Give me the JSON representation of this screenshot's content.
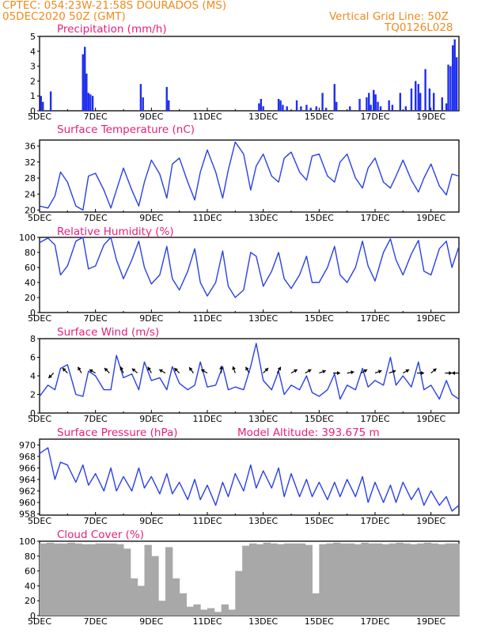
{
  "header": {
    "line1_left": "CPTEC:  054:23W-21:58S  DOURADOS (MS)",
    "line2_left": "05DEC2020 50Z (GMT)",
    "line1_right": "Vertical Grid Line: 50Z",
    "line2_right": "TQ0126L028"
  },
  "x_tick_labels": [
    "5DEC",
    "7DEC",
    "9DEC",
    "11DEC",
    "13DEC",
    "15DEC",
    "17DEC",
    "19DEC"
  ],
  "colors": {
    "title": "#e8207a",
    "header": "#ef8a1e",
    "series": "#2a40e8",
    "bars": "#1f2ff0",
    "cloud": "#a8a8a8"
  },
  "chart_data": [
    {
      "type": "bar",
      "title": "Precipitation (mm/h)",
      "ylim": [
        0,
        5
      ],
      "y_ticks": [
        0,
        1,
        2,
        3,
        4,
        5
      ],
      "x_day_range": [
        5,
        20
      ],
      "x": [
        5.05,
        5.12,
        5.4,
        6.55,
        6.62,
        6.68,
        6.75,
        6.82,
        6.9,
        8.62,
        8.7,
        9.55,
        9.62,
        12.85,
        12.92,
        13.0,
        13.55,
        13.62,
        13.7,
        13.85,
        14.2,
        14.35,
        14.55,
        14.7,
        14.9,
        15.12,
        15.25,
        15.55,
        15.62,
        16.1,
        16.45,
        16.7,
        16.78,
        16.85,
        16.95,
        17.02,
        17.1,
        17.2,
        17.5,
        17.62,
        17.9,
        18.1,
        18.3,
        18.45,
        18.55,
        18.62,
        18.8,
        18.95,
        19.1,
        19.4,
        19.55,
        19.62,
        19.7,
        19.78,
        19.85,
        19.92
      ],
      "values": [
        1.0,
        0.6,
        1.3,
        3.8,
        4.3,
        2.5,
        1.2,
        1.1,
        1.0,
        1.8,
        0.9,
        1.6,
        0.7,
        0.5,
        0.8,
        0.3,
        0.8,
        0.7,
        0.4,
        0.3,
        0.7,
        0.3,
        0.4,
        0.2,
        0.3,
        1.2,
        0.2,
        1.8,
        0.6,
        0.3,
        0.8,
        0.9,
        1.2,
        0.4,
        1.4,
        1.1,
        0.6,
        0.3,
        0.7,
        0.4,
        1.2,
        0.3,
        1.5,
        2.0,
        1.8,
        1.2,
        2.8,
        1.5,
        1.2,
        0.9,
        0.5,
        3.1,
        3.0,
        4.4,
        4.8,
        3.6
      ]
    },
    {
      "type": "line",
      "title": "Surface Temperature (nC)",
      "ylim": [
        19.5,
        37.5
      ],
      "y_ticks": [
        20,
        24,
        28,
        32,
        36
      ],
      "x_day_range": [
        5,
        20
      ],
      "x": [
        5.0,
        5.3,
        5.55,
        5.75,
        6.0,
        6.3,
        6.55,
        6.75,
        7.0,
        7.3,
        7.55,
        7.75,
        8.0,
        8.3,
        8.55,
        8.75,
        9.0,
        9.3,
        9.55,
        9.75,
        10.0,
        10.3,
        10.55,
        10.75,
        11.0,
        11.3,
        11.55,
        11.75,
        12.0,
        12.3,
        12.55,
        12.75,
        13.0,
        13.3,
        13.55,
        13.75,
        14.0,
        14.3,
        14.55,
        14.75,
        15.0,
        15.3,
        15.55,
        15.75,
        16.0,
        16.3,
        16.55,
        16.75,
        17.0,
        17.3,
        17.55,
        17.75,
        18.0,
        18.3,
        18.55,
        18.75,
        19.0,
        19.3,
        19.55,
        19.75,
        20.0
      ],
      "values": [
        21.0,
        20.5,
        23.5,
        29.5,
        27.0,
        21.0,
        20.0,
        28.5,
        29.2,
        25.0,
        20.5,
        25.0,
        30.5,
        25.0,
        21.0,
        27.0,
        32.5,
        29.0,
        23.0,
        31.5,
        33.0,
        27.0,
        22.5,
        29.5,
        35.0,
        29.5,
        23.0,
        30.0,
        37.0,
        34.0,
        25.0,
        31.0,
        34.0,
        28.5,
        27.0,
        33.0,
        34.5,
        29.5,
        27.5,
        33.5,
        34.0,
        28.5,
        27.0,
        32.0,
        34.0,
        28.0,
        25.5,
        30.5,
        33.0,
        27.0,
        25.5,
        28.5,
        32.5,
        27.5,
        24.5,
        28.0,
        31.5,
        26.0,
        23.8,
        29.0,
        28.5
      ]
    },
    {
      "type": "line",
      "title": "Relative Humidity (%)",
      "ylim": [
        0,
        100
      ],
      "y_ticks": [
        0,
        20,
        40,
        60,
        80,
        100
      ],
      "x_day_range": [
        5,
        20
      ],
      "x": [
        5.0,
        5.3,
        5.55,
        5.75,
        6.0,
        6.3,
        6.55,
        6.75,
        7.0,
        7.3,
        7.55,
        7.75,
        8.0,
        8.3,
        8.55,
        8.75,
        9.0,
        9.3,
        9.55,
        9.75,
        10.0,
        10.3,
        10.55,
        10.75,
        11.0,
        11.3,
        11.55,
        11.75,
        12.0,
        12.3,
        12.55,
        12.75,
        13.0,
        13.3,
        13.55,
        13.75,
        14.0,
        14.3,
        14.55,
        14.75,
        15.0,
        15.3,
        15.55,
        15.75,
        16.0,
        16.3,
        16.55,
        16.75,
        17.0,
        17.3,
        17.55,
        17.75,
        18.0,
        18.3,
        18.55,
        18.75,
        19.0,
        19.3,
        19.55,
        19.75,
        20.0
      ],
      "values": [
        93,
        99,
        90,
        50,
        62,
        95,
        100,
        58,
        62,
        90,
        100,
        70,
        45,
        70,
        95,
        60,
        38,
        50,
        88,
        45,
        30,
        55,
        85,
        40,
        22,
        40,
        82,
        35,
        20,
        30,
        80,
        75,
        35,
        55,
        80,
        45,
        32,
        50,
        75,
        40,
        40,
        60,
        88,
        50,
        40,
        60,
        95,
        62,
        42,
        80,
        98,
        70,
        50,
        78,
        96,
        55,
        50,
        85,
        95,
        60,
        88
      ]
    },
    {
      "type": "line",
      "title": "Surface Wind (m/s)",
      "ylim": [
        0,
        8
      ],
      "y_ticks": [
        0,
        2,
        4,
        6,
        8
      ],
      "x_day_range": [
        5,
        20
      ],
      "x": [
        5.0,
        5.3,
        5.55,
        5.75,
        6.0,
        6.3,
        6.55,
        6.75,
        7.0,
        7.3,
        7.55,
        7.75,
        8.0,
        8.3,
        8.55,
        8.75,
        9.0,
        9.3,
        9.55,
        9.75,
        10.0,
        10.3,
        10.55,
        10.75,
        11.0,
        11.3,
        11.55,
        11.75,
        12.0,
        12.3,
        12.55,
        12.75,
        13.0,
        13.3,
        13.55,
        13.75,
        14.0,
        14.3,
        14.55,
        14.75,
        15.0,
        15.3,
        15.55,
        15.75,
        16.0,
        16.3,
        16.55,
        16.75,
        17.0,
        17.3,
        17.55,
        17.75,
        18.0,
        18.3,
        18.55,
        18.75,
        19.0,
        19.3,
        19.55,
        19.75,
        20.0
      ],
      "values": [
        1.8,
        3.0,
        2.5,
        4.8,
        5.2,
        2.0,
        1.8,
        4.5,
        4.0,
        2.5,
        2.5,
        6.2,
        3.8,
        4.2,
        2.5,
        5.5,
        3.5,
        3.8,
        2.5,
        5.0,
        3.2,
        2.5,
        3.0,
        5.5,
        2.8,
        3.0,
        5.0,
        2.5,
        2.8,
        2.5,
        5.0,
        7.5,
        3.5,
        2.5,
        4.5,
        2.0,
        3.0,
        2.5,
        4.0,
        2.2,
        1.8,
        2.5,
        4.2,
        1.5,
        3.0,
        2.5,
        4.8,
        2.8,
        3.5,
        3.0,
        6.0,
        3.0,
        4.0,
        2.8,
        5.5,
        2.5,
        3.0,
        1.5,
        3.5,
        2.0,
        1.5
      ],
      "arrows": {
        "x": [
          5.5,
          6.0,
          6.5,
          7.0,
          7.5,
          8.0,
          8.5,
          9.0,
          9.5,
          10.0,
          10.5,
          11.0,
          11.5,
          12.0,
          12.5,
          13.0,
          13.5,
          14.0,
          14.5,
          15.0,
          15.5,
          16.0,
          16.5,
          17.0,
          17.5,
          18.0,
          18.5,
          19.0,
          19.5,
          20.0
        ],
        "angle_deg": [
          225,
          135,
          120,
          150,
          135,
          115,
          140,
          120,
          150,
          135,
          125,
          150,
          90,
          110,
          120,
          45,
          60,
          30,
          30,
          20,
          0,
          10,
          30,
          20,
          20,
          30,
          0,
          40,
          0,
          180
        ]
      }
    },
    {
      "type": "line",
      "title": "Surface Pressure (hPa)",
      "annotation": "Model Altitude: 393.675 m",
      "ylim": [
        957.8,
        971
      ],
      "y_ticks": [
        958,
        960,
        962,
        964,
        966,
        968,
        970
      ],
      "x_day_range": [
        5,
        20
      ],
      "x": [
        5.0,
        5.3,
        5.55,
        5.75,
        6.0,
        6.3,
        6.55,
        6.75,
        7.0,
        7.3,
        7.55,
        7.75,
        8.0,
        8.3,
        8.55,
        8.75,
        9.0,
        9.3,
        9.55,
        9.75,
        10.0,
        10.3,
        10.55,
        10.75,
        11.0,
        11.3,
        11.55,
        11.75,
        12.0,
        12.3,
        12.55,
        12.75,
        13.0,
        13.3,
        13.55,
        13.75,
        14.0,
        14.3,
        14.55,
        14.75,
        15.0,
        15.3,
        15.55,
        15.75,
        16.0,
        16.3,
        16.55,
        16.75,
        17.0,
        17.3,
        17.55,
        17.75,
        18.0,
        18.3,
        18.55,
        18.75,
        19.0,
        19.3,
        19.55,
        19.75,
        20.0
      ],
      "values": [
        968.5,
        969.5,
        964.0,
        967.0,
        966.5,
        963.5,
        966.5,
        963.0,
        965.0,
        962.0,
        966.0,
        962.0,
        964.5,
        962.0,
        966.0,
        962.5,
        964.5,
        961.5,
        965.0,
        961.5,
        963.5,
        960.5,
        964.0,
        960.5,
        963.0,
        959.5,
        963.5,
        961.0,
        965.0,
        962.0,
        966.5,
        962.5,
        965.5,
        962.5,
        966.0,
        961.0,
        965.0,
        961.0,
        964.0,
        961.0,
        963.5,
        960.5,
        963.5,
        961.0,
        964.0,
        961.0,
        964.5,
        960.0,
        963.5,
        960.0,
        963.0,
        960.0,
        963.5,
        960.5,
        962.5,
        959.5,
        962.0,
        959.5,
        961.0,
        958.5,
        959.5
      ]
    },
    {
      "type": "bar",
      "title": "Cloud Cover (%)",
      "ylim": [
        0,
        100
      ],
      "y_ticks": [
        0,
        20,
        40,
        60,
        80,
        100
      ],
      "x_day_range": [
        5,
        20
      ],
      "x": [
        5.0,
        5.25,
        5.5,
        5.75,
        6.0,
        6.25,
        6.5,
        6.75,
        7.0,
        7.25,
        7.5,
        7.75,
        8.0,
        8.25,
        8.5,
        8.75,
        9.0,
        9.25,
        9.5,
        9.75,
        10.0,
        10.25,
        10.5,
        10.75,
        11.0,
        11.25,
        11.5,
        11.75,
        12.0,
        12.25,
        12.5,
        12.75,
        13.0,
        13.25,
        13.5,
        13.75,
        14.0,
        14.25,
        14.5,
        14.75,
        15.0,
        15.25,
        15.5,
        15.75,
        16.0,
        16.25,
        16.5,
        16.75,
        17.0,
        17.25,
        17.5,
        17.75,
        18.0,
        18.25,
        18.5,
        18.75,
        19.0,
        19.25,
        19.5,
        19.75
      ],
      "values": [
        97,
        98,
        97,
        97,
        98,
        97,
        96,
        96,
        97,
        97,
        97,
        96,
        90,
        50,
        40,
        95,
        80,
        20,
        92,
        50,
        30,
        12,
        15,
        8,
        10,
        5,
        15,
        8,
        60,
        94,
        97,
        96,
        98,
        97,
        96,
        97,
        97,
        97,
        95,
        30,
        96,
        97,
        98,
        97,
        97,
        96,
        98,
        97,
        97,
        96,
        97,
        98,
        97,
        96,
        97,
        98,
        97,
        96,
        97,
        97
      ]
    }
  ]
}
